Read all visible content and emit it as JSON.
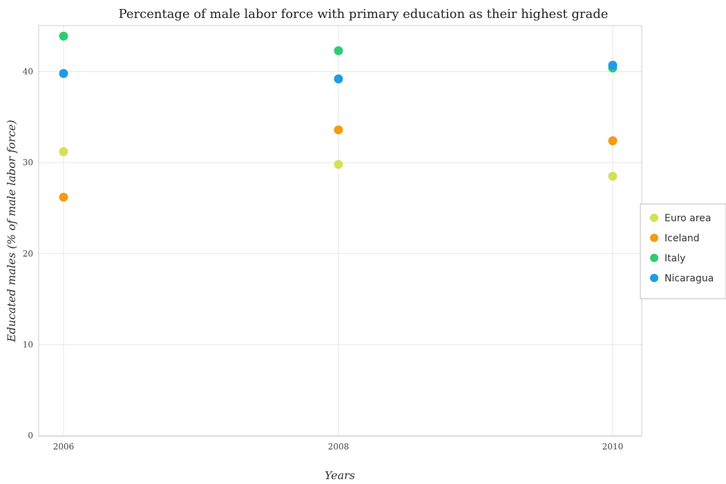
{
  "chart_data": {
    "type": "scatter",
    "title": "Percentage of male labor force with primary education as their highest grade",
    "xlabel": "Years",
    "ylabel": "Educated males (% of male labor force)",
    "categories": [
      "2006",
      "2008",
      "2010"
    ],
    "ylim": [
      0,
      46.5
    ],
    "yticks": [
      0,
      10,
      20,
      30,
      40
    ],
    "grid": true,
    "legend_position": "right",
    "series": [
      {
        "name": "Euro area",
        "color": "#d4e157",
        "values": [
          31.2,
          29.8,
          28.5
        ]
      },
      {
        "name": "Iceland",
        "color": "#f39c12",
        "values": [
          26.2,
          33.6,
          32.4
        ]
      },
      {
        "name": "Italy",
        "color": "#2ecc71",
        "values": [
          43.9,
          42.3,
          40.4
        ]
      },
      {
        "name": "Nicaragua",
        "color": "#1e9be8",
        "values": [
          39.8,
          39.2,
          40.7
        ]
      }
    ]
  }
}
